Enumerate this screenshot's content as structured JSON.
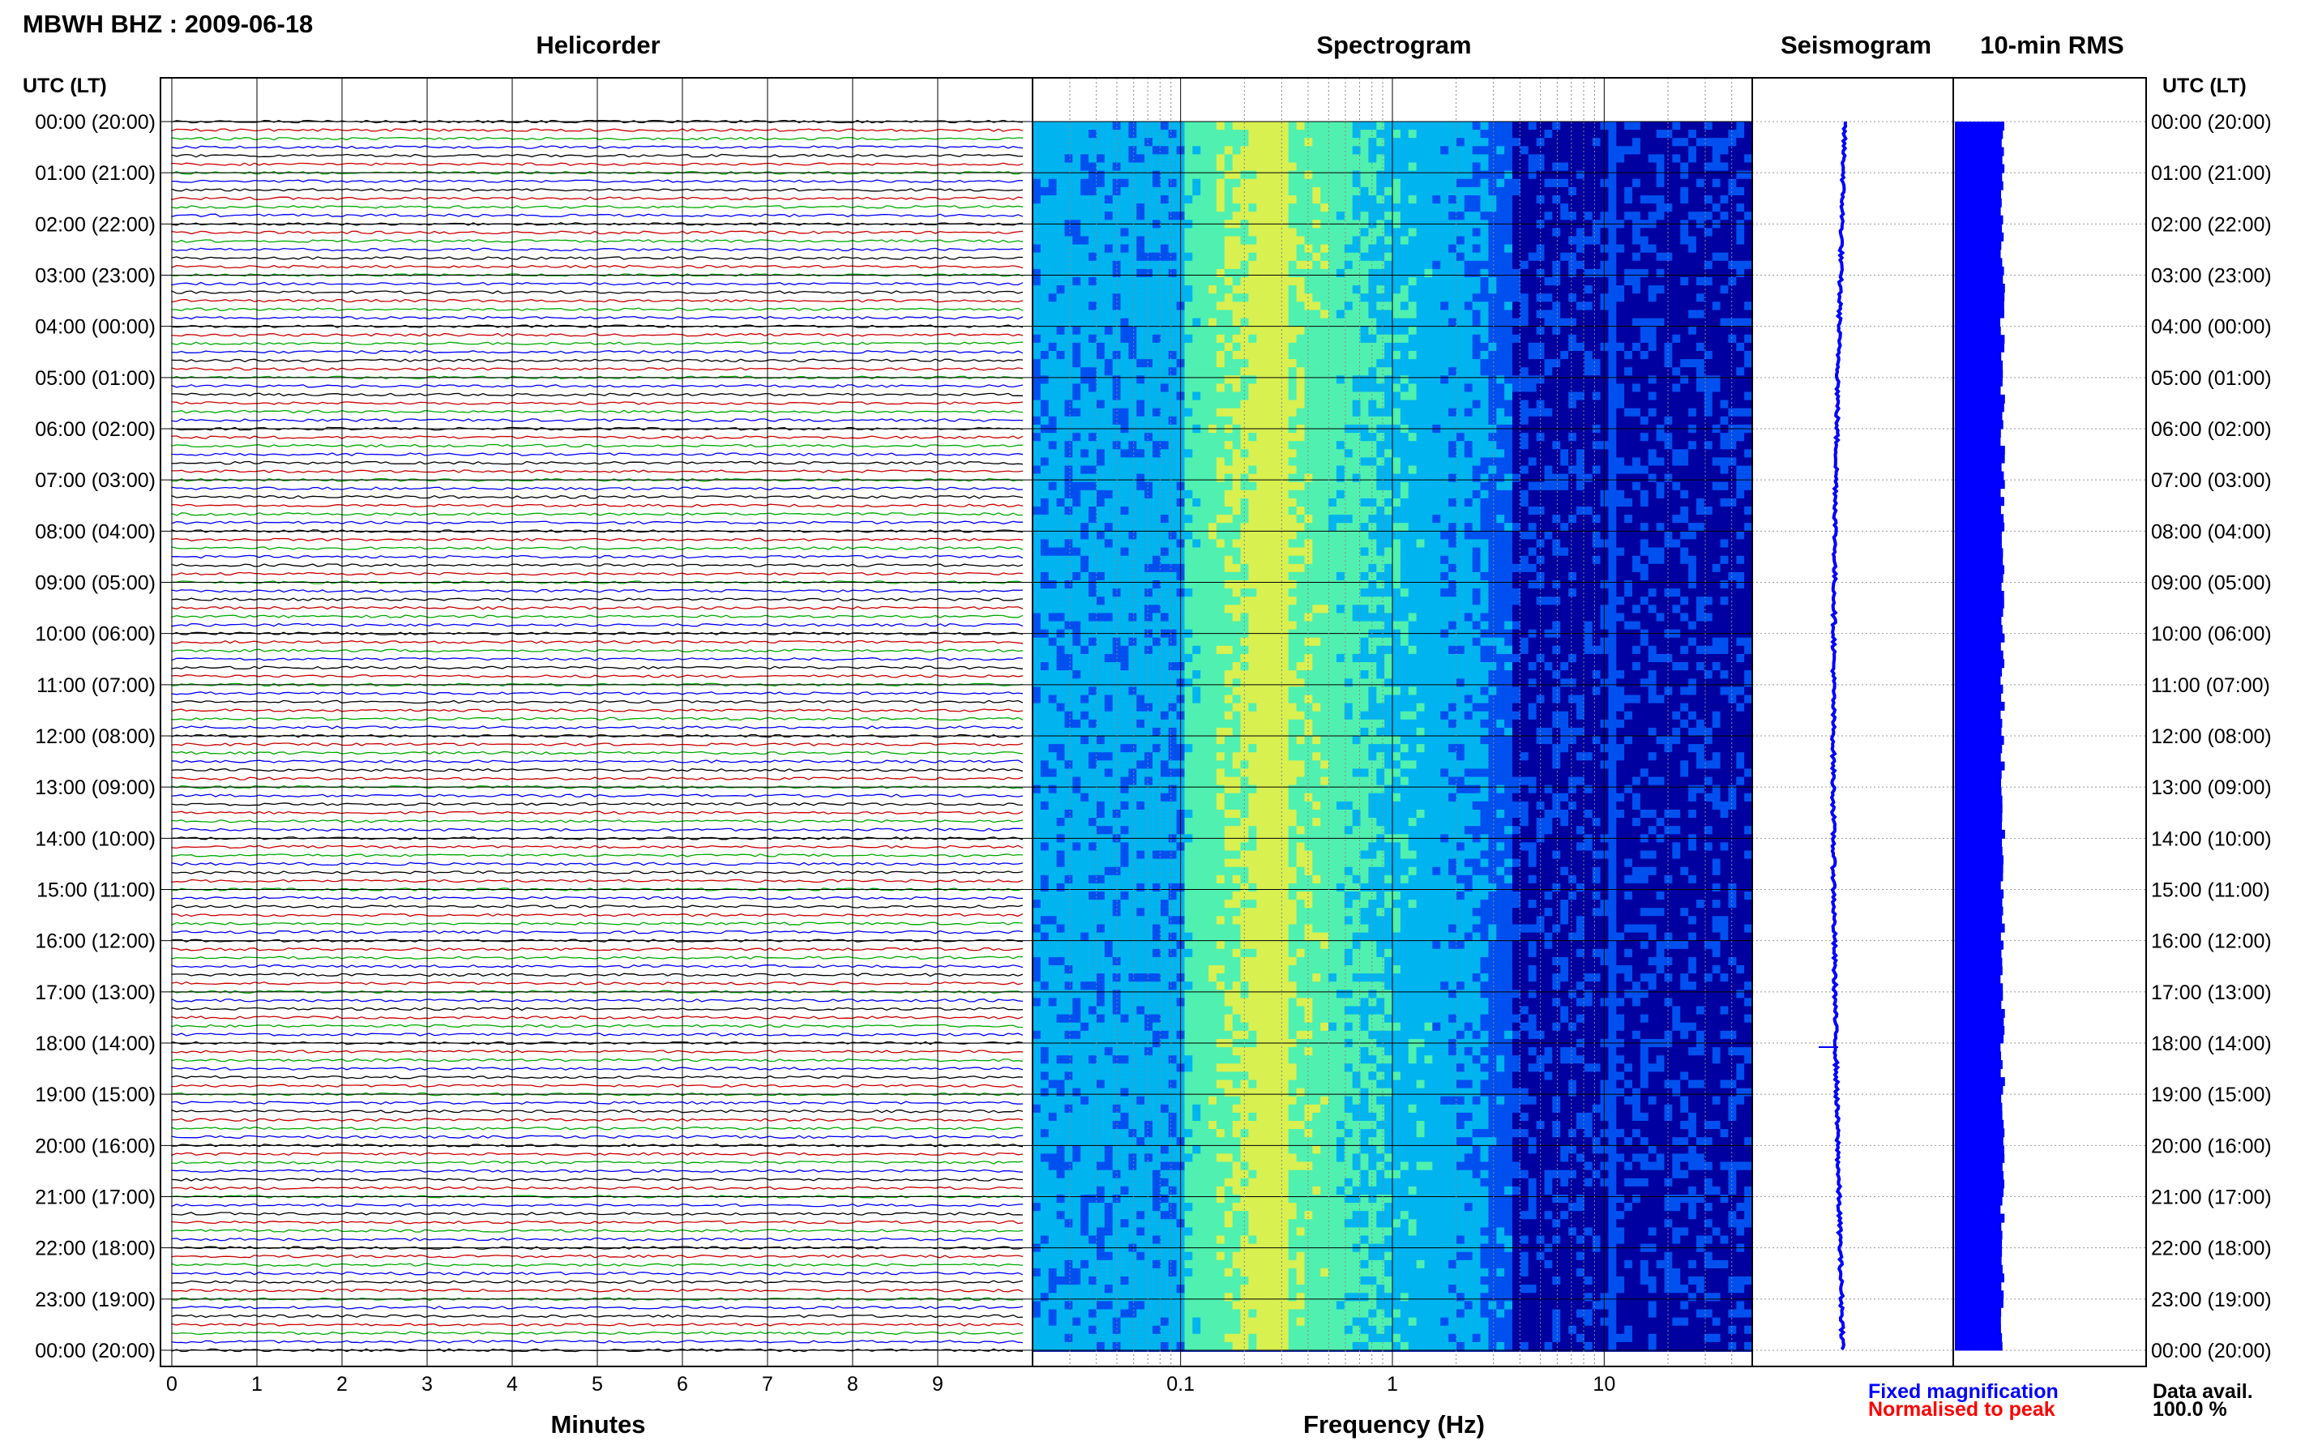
{
  "header": {
    "station": "MBWH BHZ : 2009-06-18"
  },
  "panels": {
    "helicorder": "Helicorder",
    "spectrogram": "Spectrogram",
    "seismogram": "Seismogram",
    "rms": "10-min RMS"
  },
  "axes": {
    "utc_left": "UTC (LT)",
    "utc_right": "UTC (LT)",
    "minutes": "Minutes",
    "frequency": "Frequency (Hz)"
  },
  "legend": {
    "fixed": "Fixed magnification",
    "normalised": "Normalised to peak",
    "fixed_color": "#0000ff",
    "normalised_color": "#ff0000"
  },
  "data_avail": {
    "label": "Data avail.",
    "value": "100.0 %"
  },
  "chart_data": {
    "type": "heatmap",
    "time_labels": [
      "00:00 (20:00)",
      "01:00 (21:00)",
      "02:00 (22:00)",
      "03:00 (23:00)",
      "04:00 (00:00)",
      "05:00 (01:00)",
      "06:00 (02:00)",
      "07:00 (03:00)",
      "08:00 (04:00)",
      "09:00 (05:00)",
      "10:00 (06:00)",
      "11:00 (07:00)",
      "12:00 (08:00)",
      "13:00 (09:00)",
      "14:00 (10:00)",
      "15:00 (11:00)",
      "16:00 (12:00)",
      "17:00 (13:00)",
      "18:00 (14:00)",
      "19:00 (15:00)",
      "20:00 (16:00)",
      "21:00 (17:00)",
      "22:00 (18:00)",
      "23:00 (19:00)",
      "00:00 (20:00)"
    ],
    "minutes_ticks": [
      "0",
      "1",
      "2",
      "3",
      "4",
      "5",
      "6",
      "7",
      "8",
      "9"
    ],
    "minutes_range": [
      0,
      10
    ],
    "frequency_ticks": [
      "0.1",
      "1",
      "10"
    ],
    "frequency_range": [
      0.02,
      50
    ],
    "frequency_scale": "log",
    "trace_colors": [
      "#000000",
      "#cc0000",
      "#00aa00",
      "#0000ff"
    ],
    "spectrogram_colors": [
      "#0000a0",
      "#0050f0",
      "#00b4f0",
      "#50f0b0",
      "#d8f050"
    ],
    "rms_color": "#0000ff",
    "grid": true
  }
}
